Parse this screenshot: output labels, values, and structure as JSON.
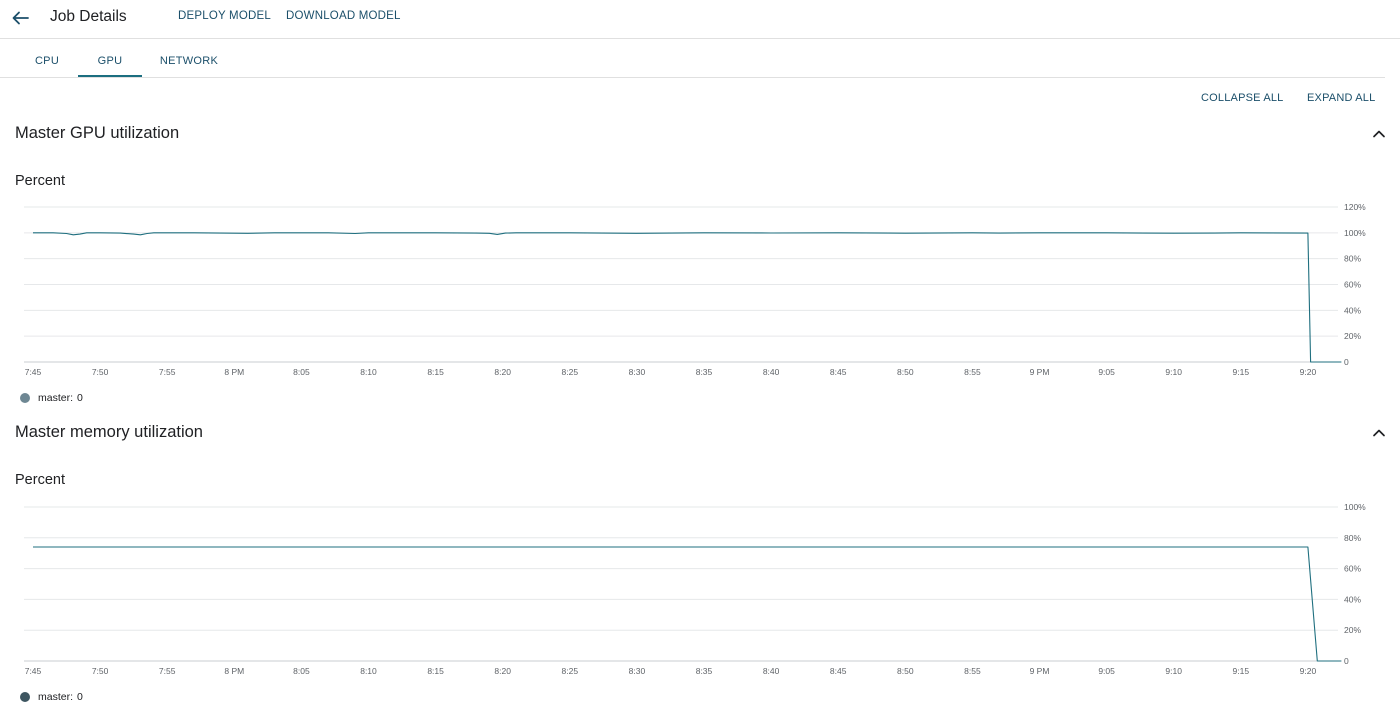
{
  "header": {
    "title": "Job Details",
    "deploy_label": "DEPLOY MODEL",
    "download_label": "DOWNLOAD MODEL"
  },
  "tabs": [
    {
      "label": "CPU",
      "active": false
    },
    {
      "label": "GPU",
      "active": true
    },
    {
      "label": "NETWORK",
      "active": false
    }
  ],
  "toolbar": {
    "collapse_all": "COLLAPSE ALL",
    "expand_all": "EXPAND ALL"
  },
  "colors": {
    "accent": "#1b6e80",
    "line": "#1f6f7f",
    "legend_gpu": "#6e8793",
    "legend_mem": "#3d5560"
  },
  "sections": [
    {
      "title": "Master GPU utilization",
      "chart_label": "Percent",
      "legend": {
        "series": "master:",
        "value": "0"
      }
    },
    {
      "title": "Master memory utilization",
      "chart_label": "Percent",
      "legend": {
        "series": "master:",
        "value": "0"
      }
    }
  ],
  "chart_data": [
    {
      "type": "line",
      "title": "Master GPU utilization",
      "ylabel": "Percent",
      "x_ticks": [
        "7:45",
        "7:50",
        "7:55",
        "8 PM",
        "8:05",
        "8:10",
        "8:15",
        "8:20",
        "8:25",
        "8:30",
        "8:35",
        "8:40",
        "8:45",
        "8:50",
        "8:55",
        "9 PM",
        "9:05",
        "9:10",
        "9:15",
        "9:20"
      ],
      "y_ticks": [
        "0",
        "20%",
        "40%",
        "60%",
        "80%",
        "100%",
        "120%"
      ],
      "ylim": [
        0,
        120
      ],
      "xlim_minutes": [
        0,
        97.5
      ],
      "series": [
        {
          "name": "master",
          "points": [
            [
              0,
              100
            ],
            [
              1.5,
              100
            ],
            [
              2.5,
              99.5
            ],
            [
              3,
              98.5
            ],
            [
              3.5,
              99
            ],
            [
              4,
              100
            ],
            [
              5,
              100
            ],
            [
              6.5,
              99.8
            ],
            [
              7.5,
              99
            ],
            [
              8,
              98.5
            ],
            [
              8.5,
              99.5
            ],
            [
              9,
              100
            ],
            [
              12,
              100
            ],
            [
              16,
              99.6
            ],
            [
              18,
              100
            ],
            [
              22,
              100
            ],
            [
              24,
              99.5
            ],
            [
              25,
              100
            ],
            [
              30,
              100
            ],
            [
              33,
              99.8
            ],
            [
              34,
              99.6
            ],
            [
              34.6,
              98.8
            ],
            [
              35.2,
              99.8
            ],
            [
              36,
              100
            ],
            [
              40,
              100
            ],
            [
              45,
              99.6
            ],
            [
              50,
              100
            ],
            [
              55,
              99.9
            ],
            [
              60,
              100
            ],
            [
              65,
              99.7
            ],
            [
              70,
              100
            ],
            [
              72,
              99.8
            ],
            [
              75,
              100
            ],
            [
              80,
              100
            ],
            [
              85,
              99.7
            ],
            [
              88,
              99.8
            ],
            [
              90,
              100
            ],
            [
              95,
              99.8
            ],
            [
              95.2,
              0
            ],
            [
              97.5,
              0
            ]
          ]
        }
      ],
      "legend": {
        "name": "master",
        "value": 0
      }
    },
    {
      "type": "line",
      "title": "Master memory utilization",
      "ylabel": "Percent",
      "x_ticks": [
        "7:45",
        "7:50",
        "7:55",
        "8 PM",
        "8:05",
        "8:10",
        "8:15",
        "8:20",
        "8:25",
        "8:30",
        "8:35",
        "8:40",
        "8:45",
        "8:50",
        "8:55",
        "9 PM",
        "9:05",
        "9:10",
        "9:15",
        "9:20"
      ],
      "y_ticks": [
        "0",
        "20%",
        "40%",
        "60%",
        "80%",
        "100%"
      ],
      "ylim": [
        0,
        100
      ],
      "xlim_minutes": [
        0,
        97.5
      ],
      "series": [
        {
          "name": "master",
          "points": [
            [
              0,
              74
            ],
            [
              95,
              74
            ],
            [
              95.7,
              0
            ],
            [
              97.5,
              0
            ]
          ]
        }
      ],
      "legend": {
        "name": "master",
        "value": 0
      }
    }
  ]
}
